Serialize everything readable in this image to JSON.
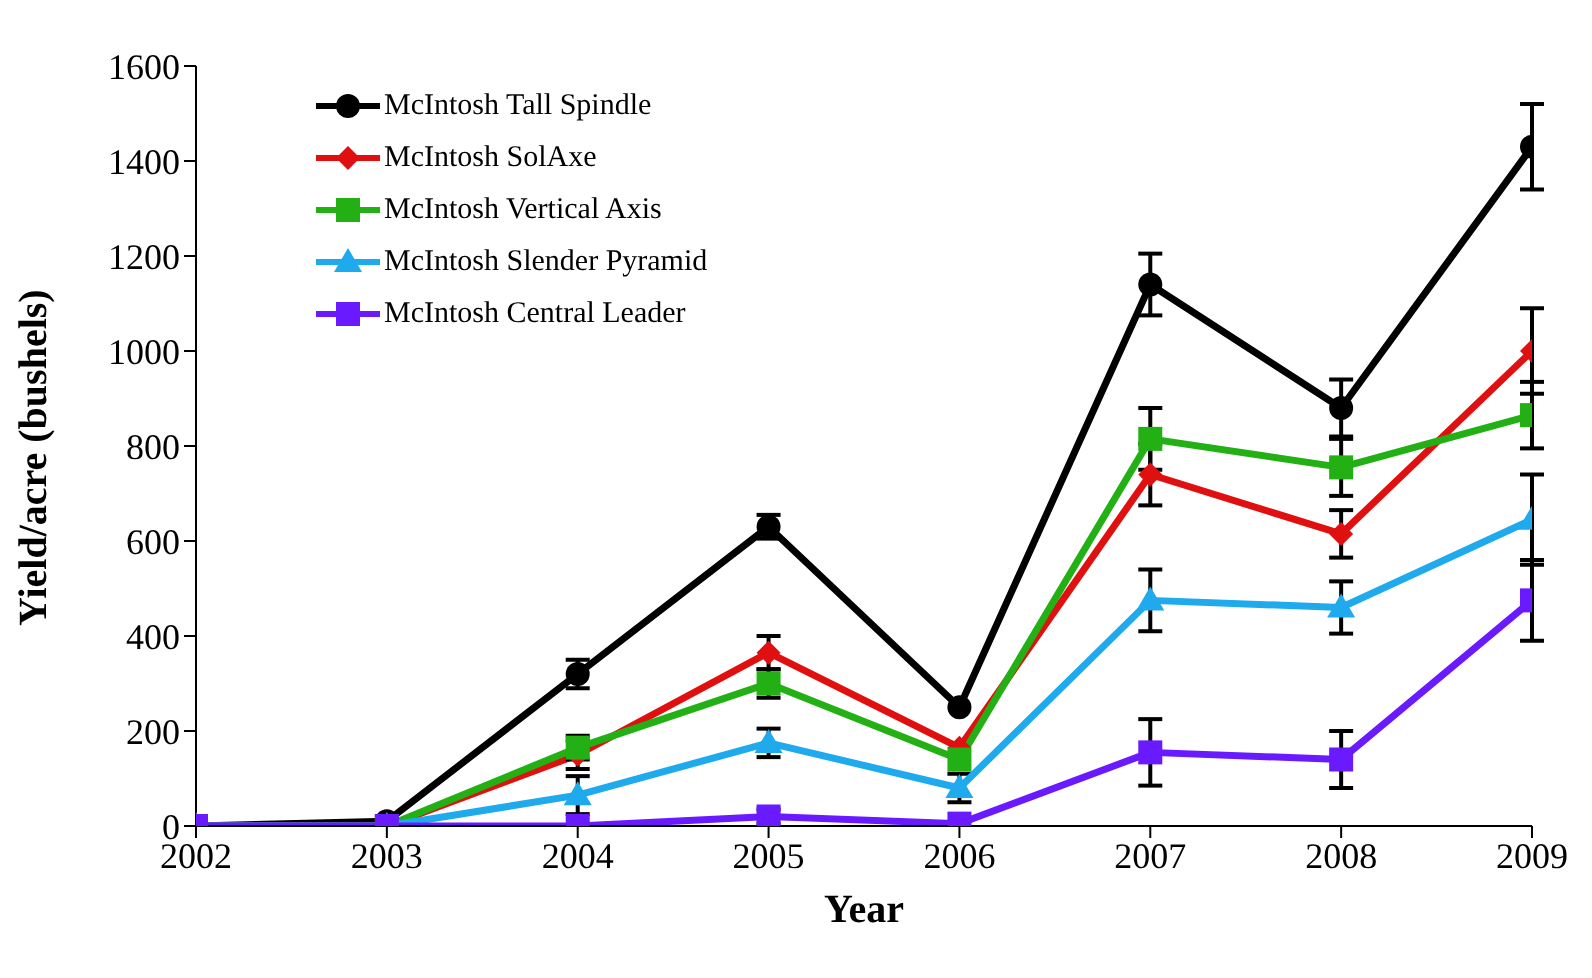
{
  "chart_data": {
    "type": "line",
    "xlabel": "Year",
    "ylabel": "Yield/acre (bushels)",
    "x": [
      2002,
      2003,
      2004,
      2005,
      2006,
      2007,
      2008,
      2009
    ],
    "xlim": [
      2002,
      2009
    ],
    "xticks": [
      2002,
      2003,
      2004,
      2005,
      2006,
      2007,
      2008,
      2009
    ],
    "ylim": [
      0,
      1600
    ],
    "yticks": [
      0,
      200,
      400,
      600,
      800,
      1000,
      1200,
      1400,
      1600
    ],
    "grid": false,
    "legend": "top left",
    "series": [
      {
        "name": "McIntosh Tall Spindle",
        "color": "#000000",
        "marker": "circle",
        "values": [
          0,
          10,
          320,
          630,
          250,
          1140,
          880,
          1430
        ],
        "errors": [
          null,
          null,
          30,
          25,
          null,
          65,
          60,
          90
        ]
      },
      {
        "name": "McIntosh SolAxe",
        "color": "#e01010",
        "marker": "diamond",
        "values": [
          0,
          0,
          150,
          365,
          165,
          740,
          615,
          1000
        ],
        "errors": [
          null,
          null,
          30,
          35,
          null,
          65,
          50,
          90
        ]
      },
      {
        "name": "McIntosh Vertical Axis",
        "color": "#22b014",
        "marker": "square",
        "values": [
          0,
          0,
          165,
          300,
          140,
          815,
          755,
          865
        ],
        "errors": [
          null,
          null,
          25,
          30,
          null,
          65,
          60,
          70
        ]
      },
      {
        "name": "McIntosh Slender Pyramid",
        "color": "#1eaaec",
        "marker": "triangle",
        "values": [
          0,
          0,
          65,
          175,
          80,
          475,
          460,
          645
        ],
        "errors": [
          null,
          null,
          40,
          30,
          30,
          65,
          55,
          95
        ]
      },
      {
        "name": "McIntosh Central Leader",
        "color": "#6a1aff",
        "marker": "square",
        "values": [
          0,
          0,
          0,
          20,
          5,
          155,
          140,
          475
        ],
        "errors": [
          null,
          null,
          null,
          15,
          null,
          70,
          60,
          85
        ]
      }
    ]
  }
}
